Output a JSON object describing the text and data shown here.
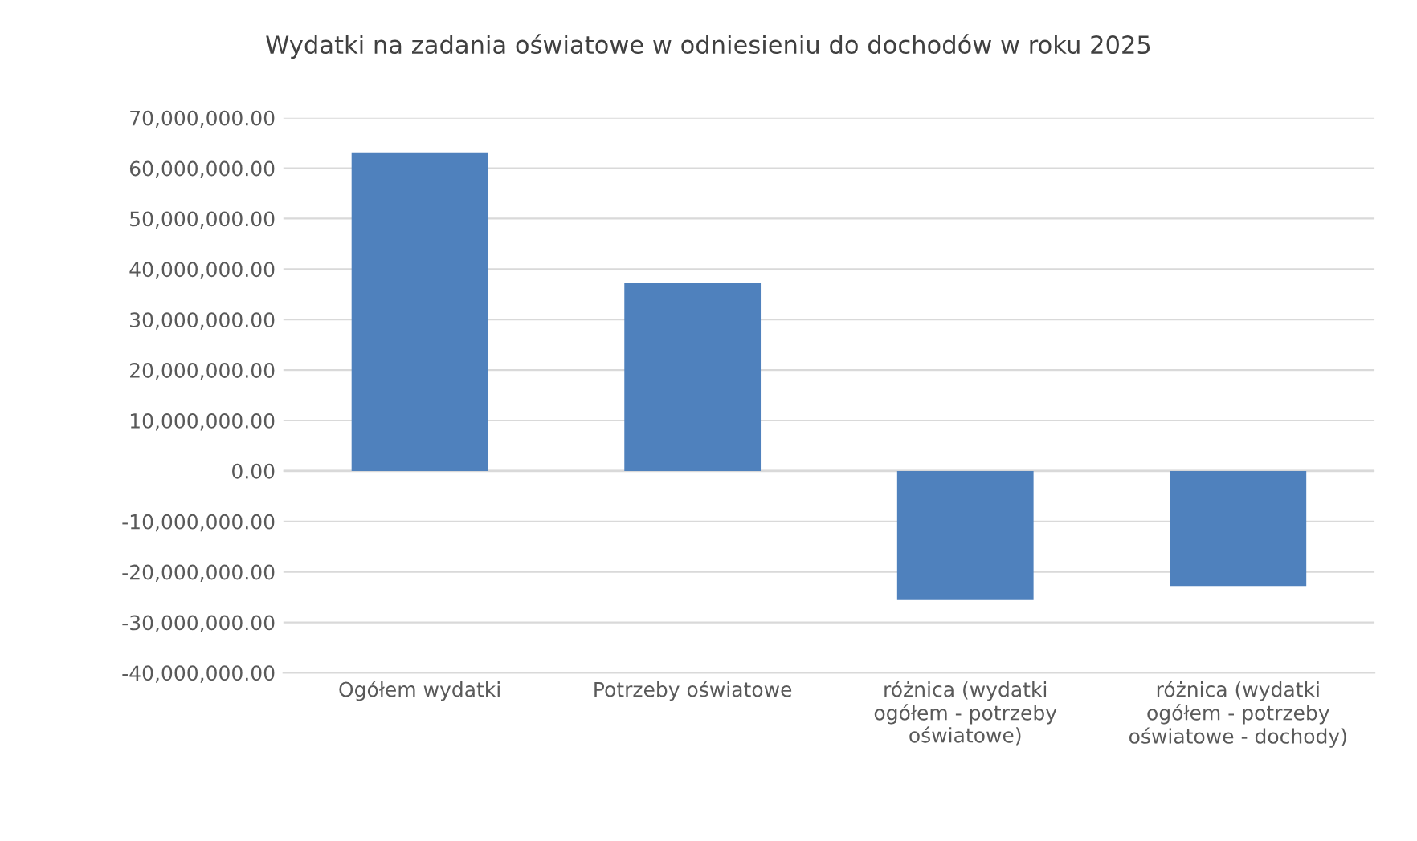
{
  "chart_data": {
    "type": "bar",
    "title": "Wydatki na zadania oświatowe w odniesieniu do dochodów w roku 2025",
    "categories": [
      "Ogółem wydatki",
      "Potrzeby oświatowe",
      "różnica (wydatki ogółem - potrzeby oświatowe)",
      "różnica (wydatki ogółem - potrzeby oświatowe - dochody)"
    ],
    "values": [
      63000000,
      37200000,
      -25600000,
      -22800000
    ],
    "color": "#4f81bd",
    "ylim": [
      -40000000,
      70000000
    ],
    "yticks": [
      {
        "value": -40000000,
        "label": "-40,000,000.00"
      },
      {
        "value": -30000000,
        "label": "-30,000,000.00"
      },
      {
        "value": -20000000,
        "label": "-20,000,000.00"
      },
      {
        "value": -10000000,
        "label": "-10,000,000.00"
      },
      {
        "value": 0,
        "label": "0.00"
      },
      {
        "value": 10000000,
        "label": "10,000,000.00"
      },
      {
        "value": 20000000,
        "label": "20,000,000.00"
      },
      {
        "value": 30000000,
        "label": "30,000,000.00"
      },
      {
        "value": 40000000,
        "label": "40,000,000.00"
      },
      {
        "value": 50000000,
        "label": "50,000,000.00"
      },
      {
        "value": 60000000,
        "label": "60,000,000.00"
      },
      {
        "value": 70000000,
        "label": "70,000,000.00"
      }
    ],
    "grid": "y"
  }
}
